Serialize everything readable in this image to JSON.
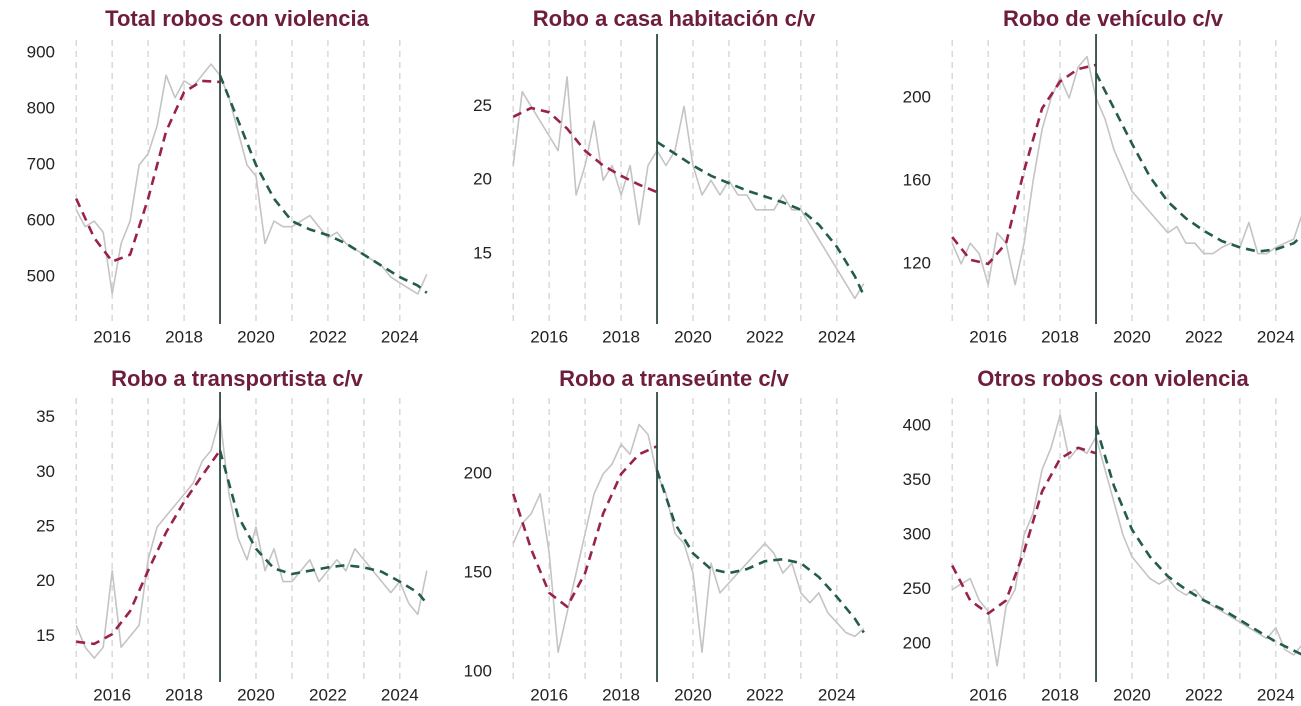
{
  "chart_data": [
    {
      "type": "line",
      "title": "Total robos con violencia",
      "x": [
        2015,
        2015.25,
        2015.5,
        2015.75,
        2016,
        2016.25,
        2016.5,
        2016.75,
        2017,
        2017.25,
        2017.5,
        2017.75,
        2018,
        2018.25,
        2018.5,
        2018.75,
        2019,
        2019.25,
        2019.5,
        2019.75,
        2020,
        2020.25,
        2020.5,
        2020.75,
        2021,
        2021.25,
        2021.5,
        2021.75,
        2022,
        2022.25,
        2022.5,
        2022.75,
        2023,
        2023.25,
        2023.5,
        2023.75,
        2024,
        2024.25,
        2024.5,
        2024.75
      ],
      "series": [
        {
          "color": "#c4c4c4",
          "values": [
            620,
            590,
            600,
            580,
            470,
            560,
            600,
            700,
            720,
            770,
            860,
            820,
            850,
            840,
            860,
            880,
            860,
            820,
            760,
            700,
            680,
            560,
            600,
            590,
            590,
            600,
            610,
            590,
            570,
            580,
            560,
            550,
            540,
            530,
            520,
            500,
            490,
            480,
            470,
            505
          ]
        },
        {
          "color": "#9b2247",
          "dashed": true,
          "x": [
            2015,
            2015.5,
            2016,
            2016.5,
            2017,
            2017.5,
            2018,
            2018.5,
            2019
          ],
          "values": [
            640,
            570,
            528,
            540,
            640,
            760,
            830,
            850,
            848
          ]
        },
        {
          "color": "#235b4e",
          "dashed": true,
          "x": [
            2019,
            2019.5,
            2020,
            2020.5,
            2021,
            2021.5,
            2022,
            2022.5,
            2023,
            2023.5,
            2024,
            2024.5,
            2024.75
          ],
          "values": [
            860,
            780,
            700,
            640,
            600,
            585,
            575,
            560,
            540,
            520,
            500,
            485,
            472
          ]
        }
      ],
      "xlim": [
        2014.8,
        2024.7
      ],
      "xticks": [
        2016,
        2018,
        2020,
        2022,
        2024
      ],
      "xgrid": [
        2015,
        2016,
        2017,
        2018,
        2019,
        2020,
        2021,
        2022,
        2023,
        2024
      ],
      "vline": 2019,
      "ylim": [
        420,
        923
      ],
      "yticks": [
        500,
        600,
        700,
        800,
        900
      ]
    },
    {
      "type": "line",
      "title": "Robo a casa habitación c/v",
      "x": [
        2015,
        2015.25,
        2015.5,
        2015.75,
        2016,
        2016.25,
        2016.5,
        2016.75,
        2017,
        2017.25,
        2017.5,
        2017.75,
        2018,
        2018.25,
        2018.5,
        2018.75,
        2019,
        2019.25,
        2019.5,
        2019.75,
        2020,
        2020.25,
        2020.5,
        2020.75,
        2021,
        2021.25,
        2021.5,
        2021.75,
        2022,
        2022.25,
        2022.5,
        2022.75,
        2023,
        2023.25,
        2023.5,
        2023.75,
        2024,
        2024.25,
        2024.5,
        2024.75
      ],
      "series": [
        {
          "color": "#c4c4c4",
          "values": [
            21,
            26,
            25,
            24,
            23,
            22,
            27,
            19,
            21,
            24,
            20,
            21,
            19,
            21,
            17,
            21,
            22,
            21,
            22,
            25,
            21,
            19,
            20,
            19,
            20,
            19,
            19,
            18,
            18,
            18,
            19,
            18,
            18,
            17,
            16,
            15,
            14,
            13,
            12,
            13
          ]
        },
        {
          "color": "#9b2247",
          "dashed": true,
          "x": [
            2015,
            2015.5,
            2016,
            2016.5,
            2017,
            2017.5,
            2018,
            2018.5,
            2019
          ],
          "values": [
            24.3,
            24.9,
            24.6,
            23.5,
            22.0,
            21.0,
            20.3,
            19.7,
            19.2
          ]
        },
        {
          "color": "#235b4e",
          "dashed": true,
          "x": [
            2019,
            2019.5,
            2020,
            2020.5,
            2021,
            2021.5,
            2022,
            2022.5,
            2023,
            2023.5,
            2024,
            2024.5,
            2024.75
          ],
          "values": [
            22.6,
            21.8,
            21.0,
            20.3,
            19.8,
            19.3,
            18.9,
            18.5,
            18.0,
            17.0,
            15.5,
            13.5,
            12.2
          ]
        }
      ],
      "xlim": [
        2014.8,
        2024.7
      ],
      "xticks": [
        2016,
        2018,
        2020,
        2022,
        2024
      ],
      "xgrid": [
        2015,
        2016,
        2017,
        2018,
        2019,
        2020,
        2021,
        2022,
        2023,
        2024
      ],
      "vline": 2019,
      "ylim": [
        10.4,
        29.5
      ],
      "yticks": [
        15,
        20,
        25
      ]
    },
    {
      "type": "line",
      "title": "Robo de vehículo c/v",
      "x": [
        2015,
        2015.25,
        2015.5,
        2015.75,
        2016,
        2016.25,
        2016.5,
        2016.75,
        2017,
        2017.25,
        2017.5,
        2017.75,
        2018,
        2018.25,
        2018.5,
        2018.75,
        2019,
        2019.25,
        2019.5,
        2019.75,
        2020,
        2020.25,
        2020.5,
        2020.75,
        2021,
        2021.25,
        2021.5,
        2021.75,
        2022,
        2022.25,
        2022.5,
        2022.75,
        2023,
        2023.25,
        2023.5,
        2023.75,
        2024,
        2024.25,
        2024.5,
        2024.75
      ],
      "series": [
        {
          "color": "#c4c4c4",
          "values": [
            130,
            120,
            130,
            125,
            110,
            135,
            130,
            110,
            130,
            160,
            185,
            200,
            210,
            200,
            215,
            220,
            200,
            190,
            175,
            165,
            155,
            150,
            145,
            140,
            135,
            138,
            130,
            130,
            125,
            125,
            128,
            130,
            128,
            140,
            125,
            125,
            128,
            130,
            132,
            145
          ]
        },
        {
          "color": "#9b2247",
          "dashed": true,
          "x": [
            2015,
            2015.5,
            2016,
            2016.5,
            2017,
            2017.5,
            2018,
            2018.5,
            2019
          ],
          "values": [
            133,
            122,
            120,
            130,
            165,
            195,
            208,
            214,
            216
          ]
        },
        {
          "color": "#235b4e",
          "dashed": true,
          "x": [
            2019,
            2019.5,
            2020,
            2020.5,
            2021,
            2021.5,
            2022,
            2022.5,
            2023,
            2023.5,
            2024,
            2024.5,
            2024.75
          ],
          "values": [
            212,
            195,
            178,
            162,
            150,
            142,
            136,
            131,
            128,
            126,
            127,
            130,
            134
          ]
        }
      ],
      "xlim": [
        2014.8,
        2024.7
      ],
      "xticks": [
        2016,
        2018,
        2020,
        2022,
        2024
      ],
      "xgrid": [
        2015,
        2016,
        2017,
        2018,
        2019,
        2020,
        2021,
        2022,
        2023,
        2024
      ],
      "vline": 2019,
      "ylim": [
        92,
        228
      ],
      "yticks": [
        120,
        160,
        200
      ]
    },
    {
      "type": "line",
      "title": "Robo a transportista c/v",
      "x": [
        2015,
        2015.25,
        2015.5,
        2015.75,
        2016,
        2016.25,
        2016.5,
        2016.75,
        2017,
        2017.25,
        2017.5,
        2017.75,
        2018,
        2018.25,
        2018.5,
        2018.75,
        2019,
        2019.25,
        2019.5,
        2019.75,
        2020,
        2020.25,
        2020.5,
        2020.75,
        2021,
        2021.25,
        2021.5,
        2021.75,
        2022,
        2022.25,
        2022.5,
        2022.75,
        2023,
        2023.25,
        2023.5,
        2023.75,
        2024,
        2024.25,
        2024.5,
        2024.75
      ],
      "series": [
        {
          "color": "#c4c4c4",
          "values": [
            16,
            14,
            13,
            14,
            21,
            14,
            15,
            16,
            22,
            25,
            26,
            27,
            28,
            29,
            31,
            32,
            35,
            28,
            24,
            22,
            25,
            21,
            23,
            20,
            20,
            21,
            22,
            20,
            21,
            22,
            21,
            23,
            22,
            21,
            20,
            19,
            20,
            18,
            17,
            21
          ]
        },
        {
          "color": "#9b2247",
          "dashed": true,
          "x": [
            2015,
            2015.5,
            2016,
            2016.5,
            2017,
            2017.5,
            2018,
            2018.5,
            2019
          ],
          "values": [
            14.5,
            14.3,
            15.2,
            17.3,
            21,
            24.5,
            27.3,
            29.7,
            32
          ]
        },
        {
          "color": "#235b4e",
          "dashed": true,
          "x": [
            2019,
            2019.5,
            2020,
            2020.5,
            2021,
            2021.5,
            2022,
            2022.5,
            2023,
            2023.5,
            2024,
            2024.5,
            2024.75
          ],
          "values": [
            32,
            26,
            23,
            21.2,
            20.7,
            21,
            21.3,
            21.5,
            21.3,
            20.9,
            20,
            19,
            18
          ]
        }
      ],
      "xlim": [
        2014.8,
        2024.7
      ],
      "xticks": [
        2016,
        2018,
        2020,
        2022,
        2024
      ],
      "xgrid": [
        2015,
        2016,
        2017,
        2018,
        2019,
        2020,
        2021,
        2022,
        2023,
        2024
      ],
      "vline": 2019,
      "ylim": [
        11.0,
        36.8
      ],
      "yticks": [
        15,
        20,
        25,
        30,
        35
      ]
    },
    {
      "type": "line",
      "title": "Robo a transeúnte c/v",
      "x": [
        2015,
        2015.25,
        2015.5,
        2015.75,
        2016,
        2016.25,
        2016.5,
        2016.75,
        2017,
        2017.25,
        2017.5,
        2017.75,
        2018,
        2018.25,
        2018.5,
        2018.75,
        2019,
        2019.25,
        2019.5,
        2019.75,
        2020,
        2020.25,
        2020.5,
        2020.75,
        2021,
        2021.25,
        2021.5,
        2021.75,
        2022,
        2022.25,
        2022.5,
        2022.75,
        2023,
        2023.25,
        2023.5,
        2023.75,
        2024,
        2024.25,
        2024.5,
        2024.75
      ],
      "series": [
        {
          "color": "#c4c4c4",
          "values": [
            165,
            175,
            180,
            190,
            160,
            110,
            130,
            150,
            170,
            190,
            200,
            205,
            215,
            210,
            225,
            220,
            200,
            190,
            170,
            165,
            150,
            110,
            155,
            140,
            145,
            150,
            155,
            160,
            165,
            160,
            150,
            155,
            140,
            135,
            140,
            130,
            125,
            120,
            118,
            122
          ]
        },
        {
          "color": "#9b2247",
          "dashed": true,
          "x": [
            2015,
            2015.5,
            2016,
            2016.5,
            2017,
            2017.5,
            2018,
            2018.5,
            2019
          ],
          "values": [
            190,
            162,
            140,
            133,
            150,
            180,
            200,
            210,
            214
          ]
        },
        {
          "color": "#235b4e",
          "dashed": true,
          "x": [
            2019,
            2019.5,
            2020,
            2020.5,
            2021,
            2021.5,
            2022,
            2022.5,
            2023,
            2023.5,
            2024,
            2024.5,
            2024.75
          ],
          "values": [
            202,
            175,
            160,
            152,
            150,
            152,
            156,
            157,
            155,
            148,
            138,
            127,
            120
          ]
        }
      ],
      "xlim": [
        2014.8,
        2024.7
      ],
      "xticks": [
        2016,
        2018,
        2020,
        2022,
        2024
      ],
      "xgrid": [
        2015,
        2016,
        2017,
        2018,
        2019,
        2020,
        2021,
        2022,
        2023,
        2024
      ],
      "vline": 2019,
      "ylim": [
        96,
        238.4
      ],
      "yticks": [
        100,
        150,
        200
      ]
    },
    {
      "type": "line",
      "title": "Otros robos con violencia",
      "x": [
        2015,
        2015.25,
        2015.5,
        2015.75,
        2016,
        2016.25,
        2016.5,
        2016.75,
        2017,
        2017.25,
        2017.5,
        2017.75,
        2018,
        2018.25,
        2018.5,
        2018.75,
        2019,
        2019.25,
        2019.5,
        2019.75,
        2020,
        2020.25,
        2020.5,
        2020.75,
        2021,
        2021.25,
        2021.5,
        2021.75,
        2022,
        2022.25,
        2022.5,
        2022.75,
        2023,
        2023.25,
        2023.5,
        2023.75,
        2024,
        2024.25,
        2024.5,
        2024.75
      ],
      "series": [
        {
          "color": "#c4c4c4",
          "values": [
            250,
            255,
            260,
            240,
            230,
            180,
            235,
            250,
            300,
            320,
            360,
            380,
            410,
            370,
            380,
            375,
            390,
            360,
            330,
            300,
            280,
            270,
            260,
            255,
            260,
            250,
            245,
            250,
            240,
            235,
            230,
            225,
            220,
            215,
            210,
            205,
            215,
            195,
            190,
            200
          ]
        },
        {
          "color": "#9b2247",
          "dashed": true,
          "x": [
            2015,
            2015.5,
            2016,
            2016.5,
            2017,
            2017.5,
            2018,
            2018.5,
            2019
          ],
          "values": [
            272,
            240,
            228,
            240,
            285,
            340,
            370,
            380,
            375
          ]
        },
        {
          "color": "#235b4e",
          "dashed": true,
          "x": [
            2019,
            2019.5,
            2020,
            2020.5,
            2021,
            2021.5,
            2022,
            2022.5,
            2023,
            2023.5,
            2024,
            2024.5,
            2024.75
          ],
          "values": [
            400,
            345,
            305,
            280,
            262,
            250,
            240,
            232,
            222,
            212,
            202,
            194,
            190
          ]
        }
      ],
      "xlim": [
        2014.8,
        2024.7
      ],
      "xticks": [
        2016,
        2018,
        2020,
        2022,
        2024
      ],
      "xgrid": [
        2015,
        2016,
        2017,
        2018,
        2019,
        2020,
        2021,
        2022,
        2023,
        2024
      ],
      "vline": 2019,
      "ylim": [
        167,
        425.7
      ],
      "yticks": [
        200,
        250,
        300,
        350,
        400
      ]
    }
  ]
}
